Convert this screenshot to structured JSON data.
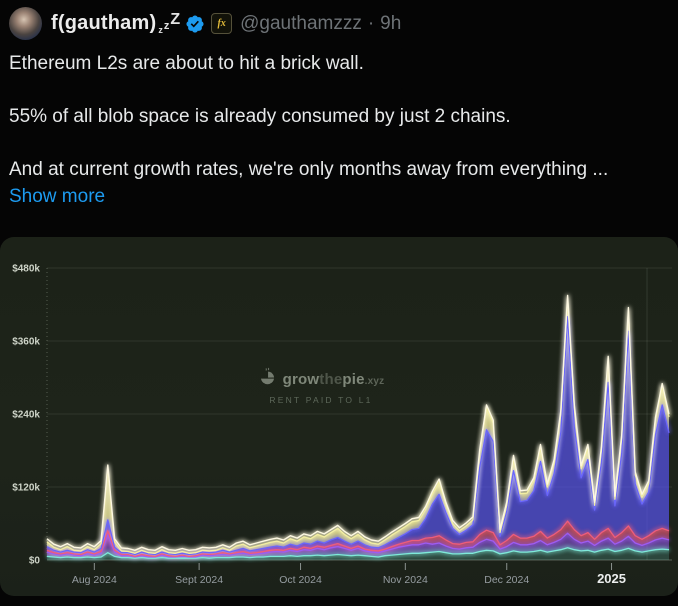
{
  "tweet": {
    "display_name": "f(gautham)",
    "name_suffix": {
      "z1": "z",
      "z2": "z",
      "z3": "Z"
    },
    "affiliate_badge_text": "fx",
    "handle": "@gauthamzzz",
    "separator": "·",
    "timestamp": "9h",
    "body_lines": [
      "Ethereum L2s are about to hit a brick wall.",
      "55% of all blob space is already consumed by just 2 chains.",
      "And at current growth rates, we're only months away from everything ..."
    ],
    "show_more_label": "Show more",
    "accent_color": "#1d9bf0",
    "verified_badge_color": "#1d9bf0"
  },
  "chart": {
    "watermark": {
      "grow": "grow",
      "the": "the",
      "pie": "pie",
      "tld": ".xyz",
      "subtitle": "RENT PAID TO L1"
    },
    "background_color": "#1d231a"
  },
  "chart_data": {
    "type": "area",
    "stacked": true,
    "title": "RENT PAID TO L1",
    "unit": "USD thousands per day",
    "grid": true,
    "legend": false,
    "ylim": [
      0,
      480
    ],
    "y_ticks": [
      {
        "label": "$0",
        "value": 0
      },
      {
        "label": "$120k",
        "value": 120
      },
      {
        "label": "$240k",
        "value": 240
      },
      {
        "label": "$360k",
        "value": 360
      },
      {
        "label": "$480k",
        "value": 480
      }
    ],
    "x_range": {
      "start": 0,
      "end": 184,
      "step": 2,
      "note": "days from chart start (~mid-Jul 2024) to ~mid-Jan 2025"
    },
    "x_ticks": [
      {
        "label": "Aug 2024",
        "day": 14,
        "emphasis": false
      },
      {
        "label": "Sept 2024",
        "day": 45,
        "emphasis": false
      },
      {
        "label": "Oct 2024",
        "day": 75,
        "emphasis": false
      },
      {
        "label": "Nov 2024",
        "day": 106,
        "emphasis": false
      },
      {
        "label": "Dec 2024",
        "day": 136,
        "emphasis": false
      },
      {
        "label": "2025",
        "day": 167,
        "emphasis": true
      }
    ],
    "vline_day": 177.5,
    "total_line_color": "#fdf8e2",
    "series": [
      {
        "name": "teal",
        "color": "#7fe9d9",
        "fill": "rgba(110,220,205,0.20)",
        "values": [
          6,
          5,
          4,
          5,
          4,
          4,
          5,
          4,
          5,
          12,
          6,
          4,
          4,
          3,
          4,
          3,
          3,
          4,
          3,
          3,
          3,
          3,
          3,
          4,
          3,
          4,
          4,
          4,
          5,
          5,
          4,
          5,
          5,
          6,
          6,
          6,
          7,
          6,
          7,
          7,
          8,
          7,
          8,
          9,
          8,
          7,
          8,
          7,
          6,
          5,
          7,
          8,
          9,
          10,
          11,
          11,
          12,
          13,
          14,
          12,
          10,
          10,
          11,
          11,
          14,
          16,
          15,
          10,
          12,
          15,
          13,
          13,
          14,
          16,
          13,
          15,
          17,
          20,
          17,
          15,
          16,
          13,
          16,
          18,
          14,
          16,
          19,
          15,
          13,
          15,
          17,
          18,
          17
        ]
      },
      {
        "name": "violet",
        "color": "#9d5cf2",
        "fill": "rgba(138,85,220,0.60)",
        "values": [
          7,
          5,
          4,
          5,
          4,
          3,
          5,
          4,
          6,
          30,
          7,
          3,
          3,
          2,
          3,
          2,
          2,
          4,
          2,
          2,
          3,
          2,
          2,
          4,
          4,
          4,
          5,
          4,
          5,
          6,
          5,
          5,
          6,
          7,
          8,
          7,
          9,
          8,
          10,
          9,
          11,
          10,
          12,
          13,
          11,
          9,
          11,
          8,
          7,
          7,
          8,
          10,
          12,
          13,
          14,
          14,
          16,
          13,
          14,
          11,
          9,
          8,
          9,
          10,
          15,
          18,
          16,
          8,
          10,
          14,
          12,
          12,
          13,
          16,
          12,
          14,
          17,
          24,
          17,
          13,
          15,
          11,
          15,
          18,
          12,
          15,
          20,
          13,
          11,
          13,
          16,
          18,
          16
        ]
      },
      {
        "name": "pink",
        "color": "#ee5d7a",
        "fill": "rgba(226,90,118,0.60)",
        "values": [
          3,
          2,
          2,
          2,
          2,
          2,
          3,
          2,
          3,
          6,
          3,
          2,
          2,
          1,
          2,
          2,
          1,
          2,
          2,
          1,
          2,
          1,
          2,
          2,
          2,
          2,
          3,
          2,
          2,
          3,
          2,
          2,
          3,
          3,
          3,
          3,
          3,
          3,
          4,
          3,
          4,
          4,
          4,
          5,
          4,
          3,
          4,
          3,
          3,
          3,
          3,
          4,
          5,
          6,
          7,
          7,
          8,
          11,
          12,
          10,
          8,
          8,
          9,
          9,
          13,
          15,
          14,
          7,
          10,
          13,
          11,
          11,
          12,
          15,
          11,
          13,
          16,
          20,
          16,
          12,
          14,
          10,
          14,
          16,
          11,
          14,
          17,
          12,
          10,
          12,
          15,
          16,
          15
        ]
      },
      {
        "name": "indigo",
        "color": "#6a66fa",
        "fill": "rgba(88,84,240,0.70)",
        "values": [
          6,
          4,
          3,
          4,
          3,
          3,
          4,
          3,
          5,
          18,
          5,
          3,
          3,
          3,
          4,
          3,
          3,
          3,
          3,
          3,
          3,
          3,
          3,
          3,
          3,
          3,
          4,
          3,
          4,
          5,
          4,
          5,
          5,
          5,
          6,
          5,
          7,
          6,
          7,
          7,
          8,
          7,
          9,
          10,
          8,
          7,
          8,
          7,
          5,
          5,
          7,
          9,
          11,
          14,
          18,
          20,
          32,
          55,
          68,
          45,
          25,
          16,
          20,
          28,
          110,
          165,
          150,
          14,
          48,
          105,
          60,
          62,
          75,
          115,
          70,
          100,
          160,
          336,
          170,
          95,
          120,
          48,
          115,
          240,
          52,
          130,
          320,
          85,
          58,
          72,
          158,
          203,
          161
        ]
      },
      {
        "name": "yellow",
        "color": "#f3efa2",
        "fill": "rgba(233,226,140,0.80)",
        "values": [
          8,
          5,
          4,
          6,
          3,
          3,
          5,
          4,
          8,
          85,
          9,
          3,
          2,
          2,
          3,
          2,
          2,
          4,
          2,
          2,
          3,
          2,
          2,
          3,
          3,
          3,
          4,
          3,
          7,
          7,
          5,
          6,
          7,
          8,
          8,
          7,
          9,
          8,
          10,
          9,
          11,
          10,
          12,
          15,
          11,
          9,
          11,
          8,
          7,
          6,
          8,
          10,
          11,
          12,
          13,
          13,
          15,
          16,
          20,
          12,
          8,
          6,
          7,
          8,
          24,
          36,
          30,
          6,
          10,
          20,
          13,
          12,
          16,
          23,
          14,
          18,
          30,
          30,
          30,
          15,
          20,
          8,
          20,
          38,
          11,
          25,
          34,
          15,
          11,
          13,
          24,
          30,
          26
        ]
      }
    ]
  }
}
